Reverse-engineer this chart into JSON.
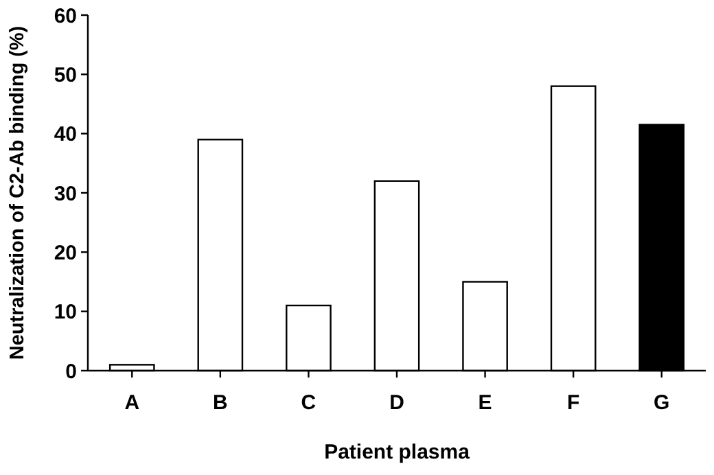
{
  "chart_data": {
    "type": "bar",
    "xlabel": "Patient plasma",
    "ylabel": "Neutralization of C2-Ab binding (%)",
    "categories": [
      "A",
      "B",
      "C",
      "D",
      "E",
      "F",
      "G"
    ],
    "values": [
      1,
      39,
      11,
      32,
      15,
      48,
      41.5
    ],
    "colors": [
      "#ffffff",
      "#ffffff",
      "#ffffff",
      "#ffffff",
      "#ffffff",
      "#ffffff",
      "#000000"
    ],
    "ylim": [
      0,
      60
    ],
    "yticks": [
      0,
      10,
      20,
      30,
      40,
      50,
      60
    ],
    "grid": false
  }
}
